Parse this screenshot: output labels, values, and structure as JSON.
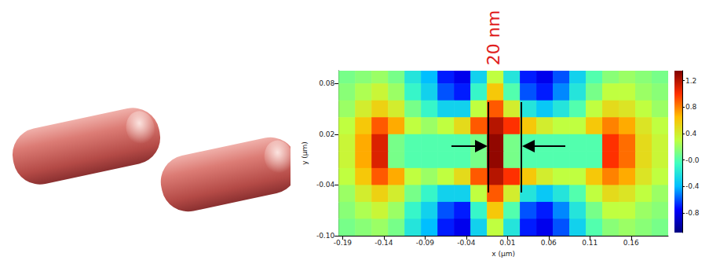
{
  "chart_data": {
    "type": "heatmap",
    "x_label": "x (μm)",
    "y_label": "y (μm)",
    "annotation": "20 nm",
    "xlim": [
      -0.195,
      0.205
    ],
    "ylim": [
      -0.1,
      0.095
    ],
    "xticks": [
      -0.19,
      -0.14,
      -0.09,
      -0.04,
      0.01,
      0.06,
      0.11,
      0.16
    ],
    "yticks": [
      {
        "value": -0.1,
        "label": "-0.10"
      },
      -0.04,
      0.02,
      0.08
    ],
    "x": [
      -0.185,
      -0.165,
      -0.145,
      -0.125,
      -0.105,
      -0.085,
      -0.065,
      -0.045,
      -0.025,
      -0.005,
      0.015,
      0.035,
      0.055,
      0.075,
      0.095,
      0.115,
      0.135,
      0.155,
      0.175,
      0.195
    ],
    "y": [
      0.09,
      0.07,
      0.05,
      0.03,
      0.01,
      -0.01,
      -0.03,
      -0.05,
      -0.07,
      -0.09
    ],
    "cells": [
      [
        0.1,
        0.15,
        0.2,
        0.1,
        -0.2,
        -0.4,
        -0.7,
        -0.8,
        -0.3,
        0.3,
        -0.2,
        -0.7,
        -0.8,
        -0.6,
        -0.3,
        0.0,
        0.15,
        0.2,
        0.15,
        0.1
      ],
      [
        0.15,
        0.25,
        0.35,
        0.2,
        -0.1,
        -0.3,
        -0.6,
        -0.7,
        -0.1,
        0.6,
        0.0,
        -0.6,
        -0.7,
        -0.5,
        -0.2,
        0.1,
        0.3,
        0.3,
        0.2,
        0.15
      ],
      [
        0.2,
        0.4,
        0.55,
        0.4,
        0.1,
        -0.1,
        -0.3,
        -0.3,
        0.3,
        0.9,
        0.4,
        -0.2,
        -0.35,
        -0.2,
        0.0,
        0.3,
        0.5,
        0.45,
        0.3,
        0.2
      ],
      [
        0.3,
        0.6,
        0.9,
        0.7,
        0.3,
        0.2,
        0.3,
        0.5,
        0.9,
        1.2,
        1.0,
        0.6,
        0.4,
        0.3,
        0.3,
        0.6,
        0.8,
        0.7,
        0.45,
        0.3
      ],
      [
        0.35,
        0.7,
        1.1,
        0.1,
        0.0,
        0.0,
        0.0,
        0.0,
        0.1,
        1.3,
        0.1,
        0.0,
        0.0,
        0.0,
        0.0,
        0.0,
        1.0,
        0.85,
        0.5,
        0.35
      ],
      [
        0.35,
        0.7,
        1.1,
        0.1,
        0.0,
        0.0,
        0.0,
        0.0,
        0.1,
        1.3,
        0.1,
        0.0,
        0.0,
        0.0,
        0.0,
        0.0,
        1.0,
        0.85,
        0.5,
        0.35
      ],
      [
        0.3,
        0.6,
        0.9,
        0.7,
        0.3,
        0.2,
        0.3,
        0.5,
        0.9,
        1.2,
        1.0,
        0.6,
        0.4,
        0.3,
        0.3,
        0.6,
        0.8,
        0.7,
        0.45,
        0.3
      ],
      [
        0.2,
        0.4,
        0.55,
        0.4,
        0.1,
        -0.1,
        -0.3,
        -0.3,
        0.3,
        0.9,
        0.4,
        -0.2,
        -0.35,
        -0.2,
        0.0,
        0.3,
        0.5,
        0.45,
        0.3,
        0.2
      ],
      [
        0.15,
        0.25,
        0.35,
        0.2,
        -0.1,
        -0.3,
        -0.6,
        -0.7,
        -0.1,
        0.6,
        0.0,
        -0.6,
        -0.7,
        -0.5,
        -0.2,
        0.1,
        0.3,
        0.3,
        0.2,
        0.15
      ],
      [
        0.1,
        0.15,
        0.2,
        0.1,
        -0.2,
        -0.4,
        -0.7,
        -0.8,
        -0.3,
        0.3,
        -0.2,
        -0.7,
        -0.8,
        -0.6,
        -0.3,
        0.0,
        0.15,
        0.2,
        0.15,
        0.1
      ]
    ],
    "colorbar": {
      "range": [
        -1.1,
        1.35
      ],
      "ticks": [
        -0.8,
        -0.4,
        {
          "value": 0,
          "label": "-0.0"
        },
        0.4,
        0.8,
        1.2
      ]
    }
  }
}
